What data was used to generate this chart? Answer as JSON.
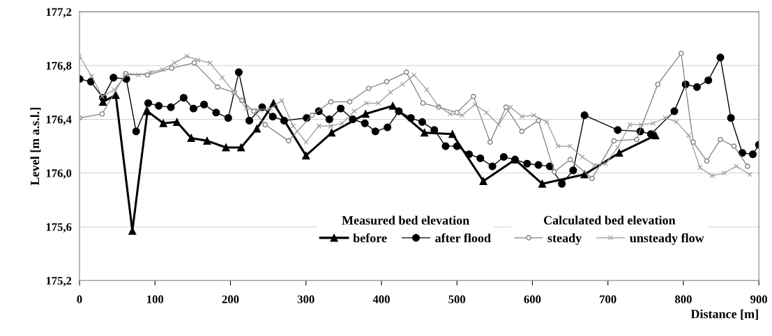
{
  "chart_data": {
    "type": "line",
    "xlabel": "Distance [m]",
    "ylabel": "Level [m a.s.l.]",
    "legend_title": [
      "Measured bed elevation",
      "Calculated bed elevation"
    ],
    "xlim": [
      0,
      900
    ],
    "xticks": [
      0,
      100,
      200,
      300,
      400,
      500,
      600,
      700,
      800,
      900
    ],
    "ylim": [
      175.2,
      177.2
    ],
    "yticks": [
      {
        "value": 175.2,
        "label": "175,2"
      },
      {
        "value": 175.6,
        "label": "175,6"
      },
      {
        "value": 176.0,
        "label": "176,0"
      },
      {
        "value": 176.4,
        "label": "176,4"
      },
      {
        "value": 176.8,
        "label": "176,8"
      },
      {
        "value": 177.2,
        "label": "177,2"
      }
    ],
    "grid": "y",
    "legend": "bottom",
    "line_style": "solid",
    "series": [
      {
        "name": "before",
        "color": "#000000",
        "marker": "triangle",
        "x": [
          31,
          48,
          70,
          90,
          111,
          129,
          148,
          169,
          194,
          214,
          235,
          257,
          300,
          334,
          379,
          415,
          457,
          494,
          535,
          577,
          613,
          669,
          715,
          763
        ],
        "values": [
          176.53,
          176.58,
          175.57,
          176.46,
          176.37,
          176.38,
          176.26,
          176.24,
          176.19,
          176.19,
          176.33,
          176.52,
          176.13,
          176.3,
          176.44,
          176.5,
          176.3,
          176.29,
          175.94,
          176.1,
          175.92,
          175.99,
          176.15,
          176.28
        ]
      },
      {
        "name": "after flood",
        "color": "#000000",
        "marker": "circle",
        "x": [
          0,
          15,
          31,
          45,
          62,
          75,
          91,
          105,
          121,
          138,
          151,
          165,
          181,
          197,
          211,
          225,
          242,
          256,
          271,
          301,
          317,
          331,
          346,
          362,
          378,
          392,
          408,
          423,
          439,
          454,
          470,
          485,
          500,
          516,
          531,
          547,
          562,
          577,
          593,
          608,
          623,
          639,
          654,
          669,
          713,
          743,
          757,
          788,
          803,
          818,
          833,
          849,
          863,
          878,
          892,
          900
        ],
        "values": [
          176.7,
          176.68,
          176.56,
          176.71,
          176.7,
          176.31,
          176.52,
          176.5,
          176.49,
          176.56,
          176.48,
          176.51,
          176.45,
          176.41,
          176.75,
          176.39,
          176.49,
          176.42,
          176.39,
          176.41,
          176.46,
          176.4,
          176.48,
          176.4,
          176.37,
          176.31,
          176.34,
          176.46,
          176.41,
          176.38,
          176.32,
          176.2,
          176.2,
          176.14,
          176.11,
          176.05,
          176.12,
          176.1,
          176.07,
          176.06,
          176.05,
          175.92,
          176.02,
          176.43,
          176.32,
          176.31,
          176.29,
          176.46,
          176.66,
          176.64,
          176.69,
          176.86,
          176.41,
          176.15,
          176.14,
          176.21
        ]
      },
      {
        "name": "steady",
        "color": "#7f7f7f",
        "marker": "circle",
        "x": [
          0,
          30,
          61,
          90,
          122,
          152,
          183,
          205,
          215,
          231,
          246,
          277,
          308,
          333,
          358,
          383,
          407,
          433,
          455,
          476,
          500,
          522,
          544,
          565,
          586,
          608,
          629,
          650,
          679,
          708,
          738,
          766,
          797,
          813,
          831,
          849,
          867,
          885
        ],
        "values": [
          176.41,
          176.44,
          176.74,
          176.73,
          176.78,
          176.82,
          176.64,
          176.6,
          176.54,
          176.46,
          176.36,
          176.24,
          176.43,
          176.53,
          176.53,
          176.63,
          176.68,
          176.75,
          176.52,
          176.49,
          176.45,
          176.57,
          176.23,
          176.49,
          176.31,
          176.39,
          176.01,
          176.1,
          175.96,
          176.24,
          176.25,
          176.66,
          176.89,
          176.23,
          176.09,
          176.25,
          176.2,
          176.05
        ]
      },
      {
        "name": "unsteady flow",
        "color": "#9a9a9a",
        "marker": "cross",
        "x": [
          0,
          16,
          30,
          46,
          62,
          78,
          94,
          110,
          126,
          142,
          157,
          173,
          189,
          205,
          221,
          236,
          253,
          268,
          283,
          300,
          317,
          333,
          348,
          364,
          380,
          396,
          412,
          428,
          443,
          460,
          475,
          491,
          507,
          524,
          539,
          555,
          571,
          586,
          602,
          619,
          634,
          650,
          666,
          682,
          697,
          713,
          729,
          744,
          760,
          776,
          791,
          807,
          822,
          838,
          854,
          870,
          888
        ],
        "values": [
          176.87,
          176.72,
          176.57,
          176.62,
          176.73,
          176.73,
          176.75,
          176.77,
          176.82,
          176.87,
          176.84,
          176.82,
          176.71,
          176.6,
          176.48,
          176.47,
          176.48,
          176.54,
          176.35,
          176.23,
          176.35,
          176.35,
          176.37,
          176.46,
          176.52,
          176.52,
          176.6,
          176.66,
          176.73,
          176.62,
          176.5,
          176.44,
          176.43,
          176.51,
          176.45,
          176.36,
          176.49,
          176.42,
          176.43,
          176.38,
          176.2,
          176.2,
          176.12,
          176.06,
          176.07,
          176.19,
          176.36,
          176.36,
          176.37,
          176.41,
          176.38,
          176.28,
          176.04,
          175.98,
          176.0,
          176.05,
          175.99
        ]
      }
    ]
  }
}
